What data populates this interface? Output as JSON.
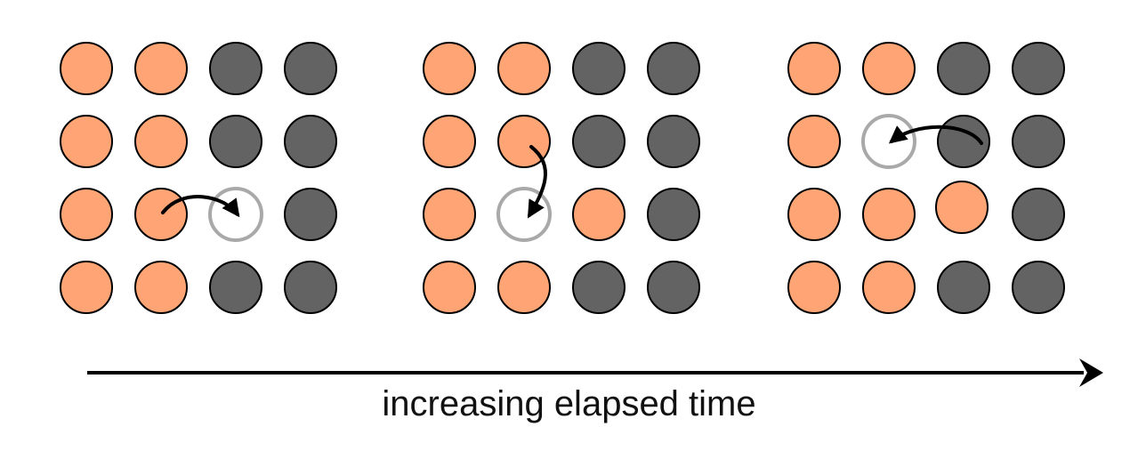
{
  "colors": {
    "orange": "#FFA575",
    "dark": "#636363",
    "vacancy": "#A9A9A9",
    "outline": "#000000"
  },
  "panels": [
    {
      "grid": [
        [
          "orange",
          "orange",
          "dark",
          "dark"
        ],
        [
          "orange",
          "orange",
          "dark",
          "dark"
        ],
        [
          "orange",
          "orange",
          "vacancy",
          "dark"
        ],
        [
          "orange",
          "orange",
          "dark",
          "dark"
        ]
      ],
      "hop": {
        "from": [
          2,
          1
        ],
        "to": [
          2,
          2
        ]
      }
    },
    {
      "grid": [
        [
          "orange",
          "orange",
          "dark",
          "dark"
        ],
        [
          "orange",
          "orange",
          "dark",
          "dark"
        ],
        [
          "orange",
          "vacancy",
          "orange",
          "dark"
        ],
        [
          "orange",
          "orange",
          "dark",
          "dark"
        ]
      ],
      "hop": {
        "from": [
          1,
          1
        ],
        "to": [
          2,
          1
        ]
      }
    },
    {
      "grid": [
        [
          "orange",
          "orange",
          "dark",
          "dark"
        ],
        [
          "orange",
          "vacancy",
          "dark",
          "dark"
        ],
        [
          "orange",
          "orange",
          "orange",
          "dark"
        ],
        [
          "orange",
          "orange",
          "dark",
          "dark"
        ]
      ],
      "hop": {
        "from": [
          1,
          2
        ],
        "to": [
          1,
          1
        ]
      }
    }
  ],
  "timeline": {
    "label": "increasing elapsed time"
  }
}
